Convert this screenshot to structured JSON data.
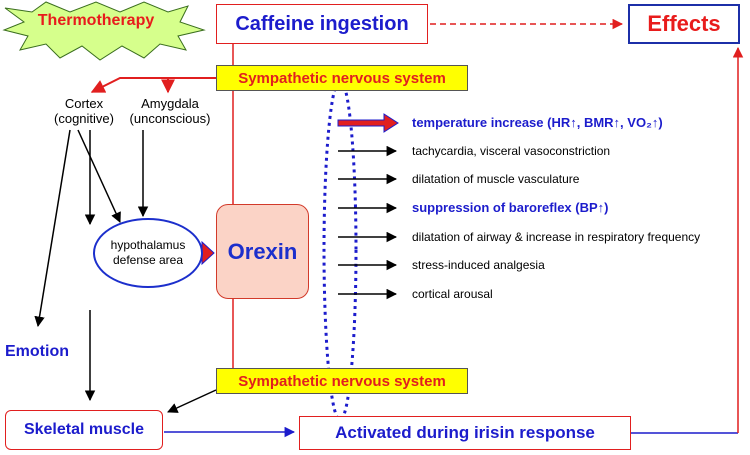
{
  "colors": {
    "red": "#e11f1f",
    "blue": "#1c1ccc",
    "yellow": "#ffff00",
    "starburst": "#d6ff8c",
    "orexin_fill": "#fbd3c6"
  },
  "thermotherapy": "Thermotherapy",
  "caffeine": "Caffeine ingestion",
  "effects_title": "Effects",
  "sns_top": "Sympathetic nervous system",
  "sns_bottom": "Sympathetic nervous system",
  "cortex": {
    "line1": "Cortex",
    "line2": "(cognitive)"
  },
  "amygdala": {
    "line1": "Amygdala",
    "line2": "(unconscious)"
  },
  "hypothalamus": {
    "line1": "hypothalamus",
    "line2": "defense area"
  },
  "orexin": "Orexin",
  "emotion": "Emotion",
  "skeletal": "Skeletal muscle",
  "irisin": "Activated during irisin response",
  "effect_list": [
    "temperature increase (HR↑, BMR↑, VO₂↑)",
    "tachycardia, visceral vasoconstriction",
    "dilatation of muscle vasculature",
    "suppression of baroreflex (BP↑)",
    "dilatation of airway & increase in respiratory frequency",
    "stress-induced analgesia",
    "cortical arousal"
  ]
}
